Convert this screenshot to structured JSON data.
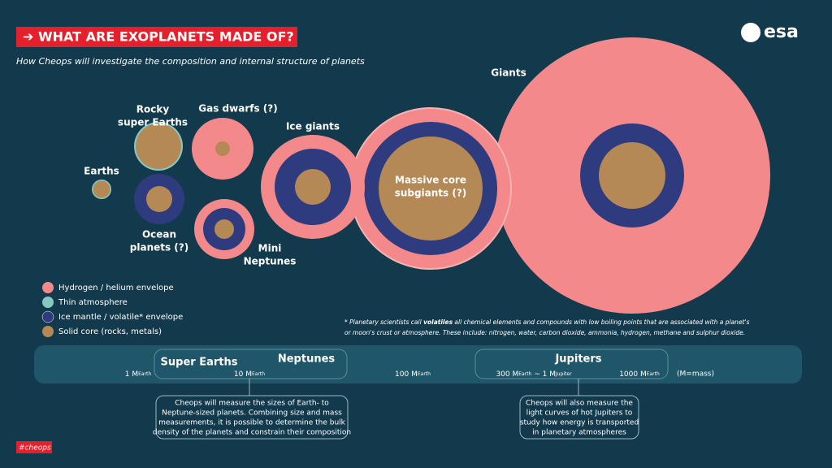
{
  "header": {
    "title": "➔ WHAT ARE EXOPLANETS MADE OF?",
    "subtitle": "How Cheops will investigate the composition and internal structure of planets",
    "logo": "esa"
  },
  "planets": {
    "earths": [
      "Earths"
    ],
    "rocky": [
      "Rocky",
      "super Earths"
    ],
    "gas_dwarfs": [
      "Gas dwarfs (?)"
    ],
    "ocean": [
      "Ocean",
      "planets (?)"
    ],
    "mini_neptunes": [
      "Mini",
      "Neptunes"
    ],
    "ice_giants": [
      "Ice giants"
    ],
    "subgiants": [
      "Massive core",
      "subgiants (?)"
    ],
    "giants": [
      "Giants"
    ]
  },
  "legend": [
    "Hydrogen / helium envelope",
    "Thin atmosphere",
    "Ice mantle / volatile* envelope",
    "Solid core (rocks, metals)"
  ],
  "footnote": {
    "line1": [
      "* Planetary scientists call ",
      "volatiles",
      " all chemical elements and compounds with low boiling points that are associated with a planet's"
    ],
    "line2": "or moon's crust or atmosphere. These include: nitrogen, water, carbon dioxide, ammonia, hydrogen, methane and sulphur dioxide."
  },
  "scale": {
    "groups": [
      "Super Earths",
      "Neptunes",
      "Jupiters"
    ],
    "masses": [
      {
        "main": "1 M",
        "sub": "Earth"
      },
      {
        "main": "10 M",
        "sub": "Earth"
      },
      {
        "main": "100 M",
        "sub": "Earth"
      },
      {
        "main": "300 M",
        "sub": "Earth",
        "main2": " ~ 1 M",
        "sub2": "Jupiter"
      },
      {
        "main": "1000 M",
        "sub": "Earth"
      }
    ],
    "note": "(M=mass)"
  },
  "callouts": [
    [
      "Cheops will measure the sizes of Earth- to",
      "Neptune-sized planets. Combining size and mass",
      "measurements, it is possible to determine the bulk",
      "density of the planets and constrain their composition"
    ],
    [
      "Cheops will also measure the",
      "light curves of hot Jupiters to",
      "study how energy is transported",
      "in planetary atmospheres"
    ]
  ],
  "hashtag": "#cheops"
}
